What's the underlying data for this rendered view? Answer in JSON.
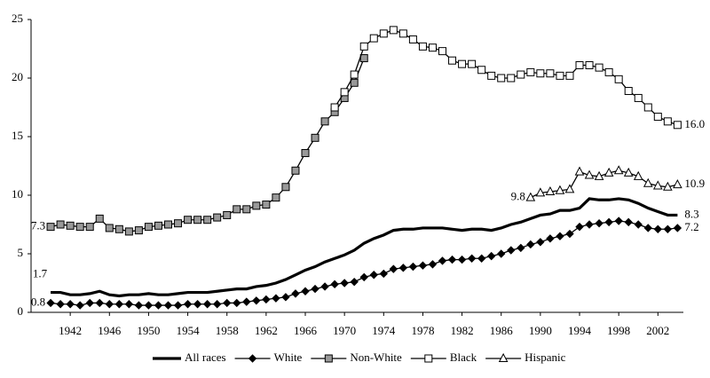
{
  "chart_data": {
    "type": "line",
    "x": [
      1940,
      1941,
      1942,
      1943,
      1944,
      1945,
      1946,
      1947,
      1948,
      1949,
      1950,
      1951,
      1952,
      1953,
      1954,
      1955,
      1956,
      1957,
      1958,
      1959,
      1960,
      1961,
      1962,
      1963,
      1964,
      1965,
      1966,
      1967,
      1968,
      1969,
      1970,
      1971,
      1972,
      1973,
      1974,
      1975,
      1976,
      1977,
      1978,
      1979,
      1980,
      1981,
      1982,
      1983,
      1984,
      1985,
      1986,
      1987,
      1988,
      1989,
      1990,
      1991,
      1992,
      1993,
      1994,
      1995,
      1996,
      1997,
      1998,
      1999,
      2000,
      2001,
      2002,
      2003,
      2004
    ],
    "xlim": [
      1938,
      2004.6
    ],
    "xticks": [
      1942,
      1946,
      1950,
      1954,
      1958,
      1962,
      1966,
      1970,
      1974,
      1978,
      1982,
      1986,
      1990,
      1994,
      1998,
      2002
    ],
    "ylim": [
      0,
      25
    ],
    "yticks": [
      0,
      5,
      10,
      15,
      20,
      25
    ],
    "series": [
      {
        "name": "All races",
        "color": "#000000",
        "marker": "none",
        "values": [
          1.7,
          1.7,
          1.5,
          1.5,
          1.6,
          1.8,
          1.5,
          1.4,
          1.5,
          1.5,
          1.6,
          1.5,
          1.5,
          1.6,
          1.7,
          1.7,
          1.7,
          1.8,
          1.9,
          2.0,
          2.0,
          2.2,
          2.3,
          2.5,
          2.8,
          3.2,
          3.6,
          3.9,
          4.3,
          4.6,
          4.9,
          5.3,
          5.9,
          6.3,
          6.6,
          7.0,
          7.1,
          7.1,
          7.2,
          7.2,
          7.2,
          7.1,
          7.0,
          7.1,
          7.1,
          7.0,
          7.2,
          7.5,
          7.7,
          8.0,
          8.3,
          8.4,
          8.7,
          8.7,
          8.9,
          9.7,
          9.6,
          9.6,
          9.7,
          9.6,
          9.3,
          8.9,
          8.6,
          8.3,
          8.3
        ],
        "value_labels": [
          "1.7",
          null,
          null,
          null,
          null,
          null,
          null,
          null,
          null,
          null,
          null,
          null,
          null,
          null,
          null,
          null,
          null,
          null,
          null,
          null,
          null,
          null,
          null,
          null,
          null,
          null,
          null,
          null,
          null,
          null,
          null,
          null,
          null,
          null,
          null,
          null,
          null,
          null,
          null,
          null,
          null,
          null,
          null,
          null,
          null,
          null,
          null,
          null,
          null,
          null,
          null,
          null,
          null,
          null,
          null,
          null,
          null,
          null,
          null,
          null,
          null,
          null,
          null,
          null,
          "8.3"
        ]
      },
      {
        "name": "White",
        "color": "#000000",
        "marker": "diamond",
        "values": [
          0.8,
          0.7,
          0.7,
          0.6,
          0.8,
          0.8,
          0.7,
          0.7,
          0.7,
          0.6,
          0.6,
          0.6,
          0.6,
          0.6,
          0.7,
          0.7,
          0.7,
          0.7,
          0.8,
          0.8,
          0.9,
          1.0,
          1.1,
          1.2,
          1.3,
          1.6,
          1.8,
          2.0,
          2.2,
          2.4,
          2.5,
          2.6,
          3.0,
          3.2,
          3.3,
          3.7,
          3.8,
          3.9,
          4.0,
          4.1,
          4.4,
          4.5,
          4.5,
          4.6,
          4.6,
          4.8,
          5.0,
          5.3,
          5.5,
          5.8,
          6.0,
          6.3,
          6.5,
          6.7,
          7.3,
          7.5,
          7.6,
          7.7,
          7.8,
          7.7,
          7.5,
          7.2,
          7.1,
          7.1,
          7.2
        ],
        "value_labels": [
          "0.8",
          null,
          null,
          null,
          null,
          null,
          null,
          null,
          null,
          null,
          null,
          null,
          null,
          null,
          null,
          null,
          null,
          null,
          null,
          null,
          null,
          null,
          null,
          null,
          null,
          null,
          null,
          null,
          null,
          null,
          null,
          null,
          null,
          null,
          null,
          null,
          null,
          null,
          null,
          null,
          null,
          null,
          null,
          null,
          null,
          null,
          null,
          null,
          null,
          null,
          null,
          null,
          null,
          null,
          null,
          null,
          null,
          null,
          null,
          null,
          null,
          null,
          null,
          null,
          "7.2"
        ]
      },
      {
        "name": "Non-White",
        "color": "#999999",
        "marker": "square",
        "values": [
          7.3,
          7.5,
          7.4,
          7.3,
          7.3,
          8.0,
          7.2,
          7.1,
          6.9,
          7.0,
          7.3,
          7.4,
          7.5,
          7.6,
          7.9,
          7.9,
          7.9,
          8.1,
          8.3,
          8.8,
          8.8,
          9.1,
          9.2,
          9.8,
          10.7,
          12.1,
          13.6,
          14.9,
          16.3,
          17.1,
          18.3,
          19.6,
          21.7,
          null,
          null,
          null,
          null,
          null,
          null,
          null,
          null,
          null,
          null,
          null,
          null,
          null,
          null,
          null,
          null,
          null,
          null,
          null,
          null,
          null,
          null,
          null,
          null,
          null,
          null,
          null,
          null,
          null,
          null,
          null,
          null
        ],
        "value_labels": [
          "7.3",
          null,
          null,
          null,
          null,
          null,
          null,
          null,
          null,
          null,
          null,
          null,
          null,
          null,
          null,
          null,
          null,
          null,
          null,
          null,
          null,
          null,
          null,
          null,
          null,
          null,
          null,
          null,
          null,
          null,
          null,
          null,
          null,
          null,
          null,
          null,
          null,
          null,
          null,
          null,
          null,
          null,
          null,
          null,
          null,
          null,
          null,
          null,
          null,
          null,
          null,
          null,
          null,
          null,
          null,
          null,
          null,
          null,
          null,
          null,
          null,
          null,
          null,
          null,
          null
        ]
      },
      {
        "name": "Black",
        "color": "#ffffff",
        "marker": "square",
        "values": [
          null,
          null,
          null,
          null,
          null,
          null,
          null,
          null,
          null,
          null,
          null,
          null,
          null,
          null,
          null,
          null,
          null,
          null,
          null,
          null,
          null,
          null,
          null,
          null,
          null,
          null,
          null,
          null,
          null,
          17.5,
          18.8,
          20.3,
          22.7,
          23.4,
          23.8,
          24.1,
          23.8,
          23.3,
          22.7,
          22.6,
          22.3,
          21.5,
          21.2,
          21.2,
          20.7,
          20.2,
          20.0,
          20.0,
          20.3,
          20.5,
          20.4,
          20.4,
          20.2,
          20.2,
          21.1,
          21.1,
          20.9,
          20.5,
          19.9,
          18.9,
          18.3,
          17.5,
          16.7,
          16.3,
          16.0
        ],
        "value_labels": [
          null,
          null,
          null,
          null,
          null,
          null,
          null,
          null,
          null,
          null,
          null,
          null,
          null,
          null,
          null,
          null,
          null,
          null,
          null,
          null,
          null,
          null,
          null,
          null,
          null,
          null,
          null,
          null,
          null,
          null,
          null,
          null,
          null,
          null,
          null,
          null,
          null,
          null,
          null,
          null,
          null,
          null,
          null,
          null,
          null,
          null,
          null,
          null,
          null,
          null,
          null,
          null,
          null,
          null,
          null,
          null,
          null,
          null,
          null,
          null,
          null,
          null,
          null,
          null,
          "16.0"
        ]
      },
      {
        "name": "Hispanic",
        "color": "#ffffff",
        "marker": "triangle",
        "values": [
          null,
          null,
          null,
          null,
          null,
          null,
          null,
          null,
          null,
          null,
          null,
          null,
          null,
          null,
          null,
          null,
          null,
          null,
          null,
          null,
          null,
          null,
          null,
          null,
          null,
          null,
          null,
          null,
          null,
          null,
          null,
          null,
          null,
          null,
          null,
          null,
          null,
          null,
          null,
          null,
          null,
          null,
          null,
          null,
          null,
          null,
          null,
          null,
          null,
          9.8,
          10.2,
          10.3,
          10.4,
          10.5,
          12.0,
          11.7,
          11.6,
          11.9,
          12.1,
          11.9,
          11.6,
          11.0,
          10.8,
          10.7,
          10.9
        ],
        "value_labels": [
          null,
          null,
          null,
          null,
          null,
          null,
          null,
          null,
          null,
          null,
          null,
          null,
          null,
          null,
          null,
          null,
          null,
          null,
          null,
          null,
          null,
          null,
          null,
          null,
          null,
          null,
          null,
          null,
          null,
          null,
          null,
          null,
          null,
          null,
          null,
          null,
          null,
          null,
          null,
          null,
          null,
          null,
          null,
          null,
          null,
          null,
          null,
          null,
          null,
          "9.8",
          null,
          null,
          null,
          null,
          null,
          null,
          null,
          null,
          null,
          null,
          null,
          null,
          null,
          null,
          "10.9"
        ]
      }
    ]
  }
}
